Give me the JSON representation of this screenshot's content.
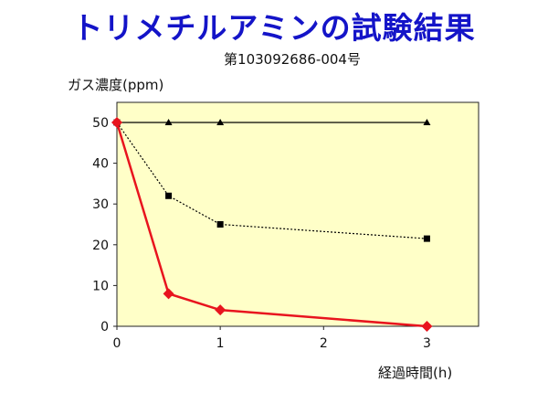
{
  "title": "トリメチルアミンの試験結果",
  "subtitle": "第103092686-004号",
  "chart_data": {
    "type": "line",
    "xlabel": "経過時間(h)",
    "ylabel": "ガス濃度(ppm)",
    "xlim": [
      0,
      3.5
    ],
    "ylim": [
      0,
      50
    ],
    "xticks": [
      0,
      1,
      2,
      3
    ],
    "yticks": [
      0,
      10,
      20,
      30,
      40,
      50
    ],
    "grid": false,
    "series": [
      {
        "marker": "triangle",
        "color": "#000000",
        "line_style": "solid",
        "points": [
          [
            0,
            50
          ],
          [
            0.5,
            50
          ],
          [
            1,
            50
          ],
          [
            3,
            50
          ]
        ]
      },
      {
        "marker": "square",
        "color": "#000000",
        "line_style": "dotted",
        "points": [
          [
            0,
            50
          ],
          [
            0.5,
            32
          ],
          [
            1,
            25
          ],
          [
            3,
            21.5
          ]
        ]
      },
      {
        "marker": "diamond",
        "color": "#e8141e",
        "line_style": "solid",
        "points": [
          [
            0,
            50
          ],
          [
            0.5,
            8
          ],
          [
            1,
            4
          ],
          [
            3,
            0
          ]
        ]
      }
    ],
    "plot_background": "#ffffc8"
  }
}
